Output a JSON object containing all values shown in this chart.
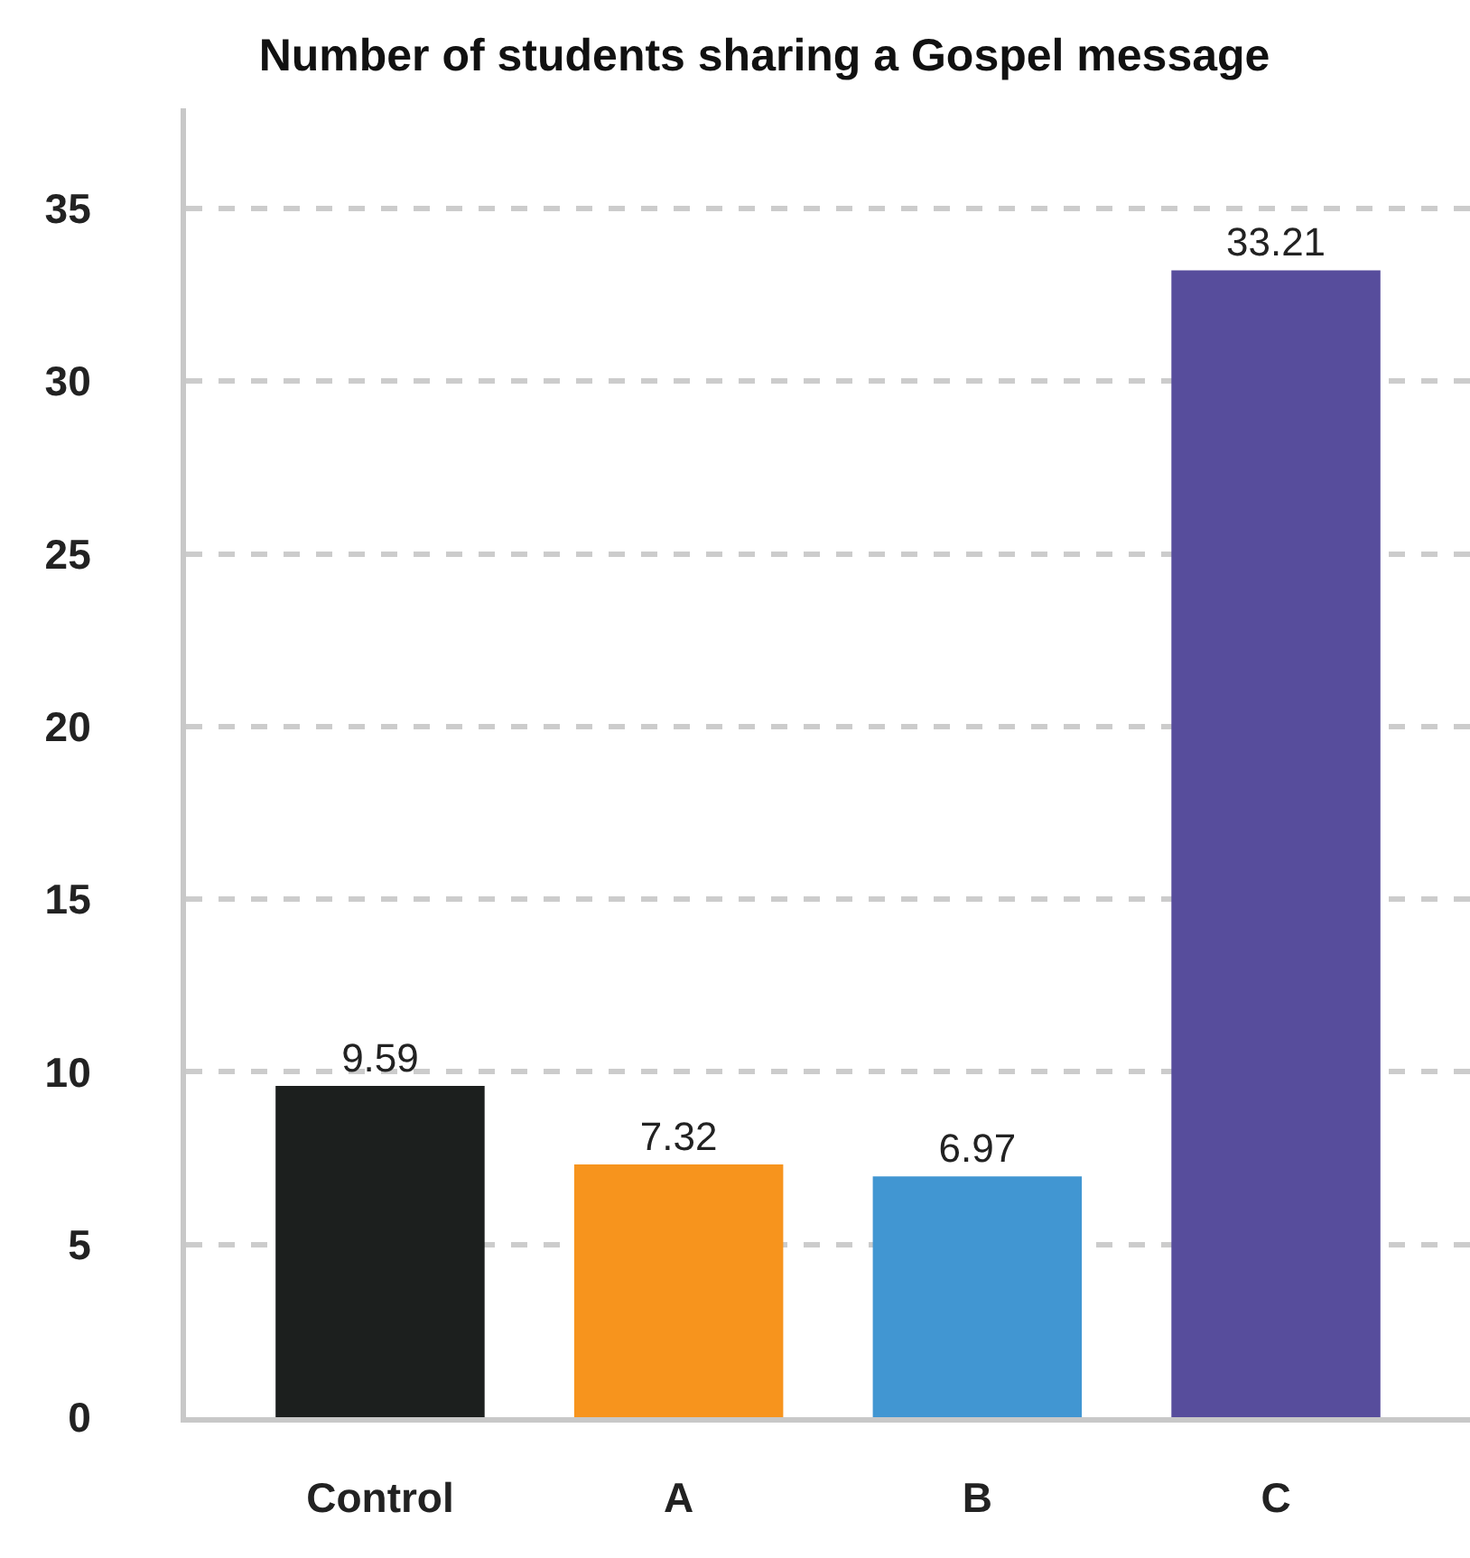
{
  "chart_data": {
    "type": "bar",
    "title": "Number of students sharing a Gospel message",
    "categories": [
      "Control",
      "A",
      "B",
      "C"
    ],
    "values": [
      9.59,
      7.32,
      6.97,
      33.21
    ],
    "colors": [
      "#1c1f1e",
      "#f7941d",
      "#4196d2",
      "#574d9c"
    ],
    "ylim": [
      0,
      37.9
    ],
    "yticks": [
      0,
      5,
      10,
      15,
      20,
      25,
      30,
      35
    ],
    "grid": "y",
    "data_labels": true
  }
}
